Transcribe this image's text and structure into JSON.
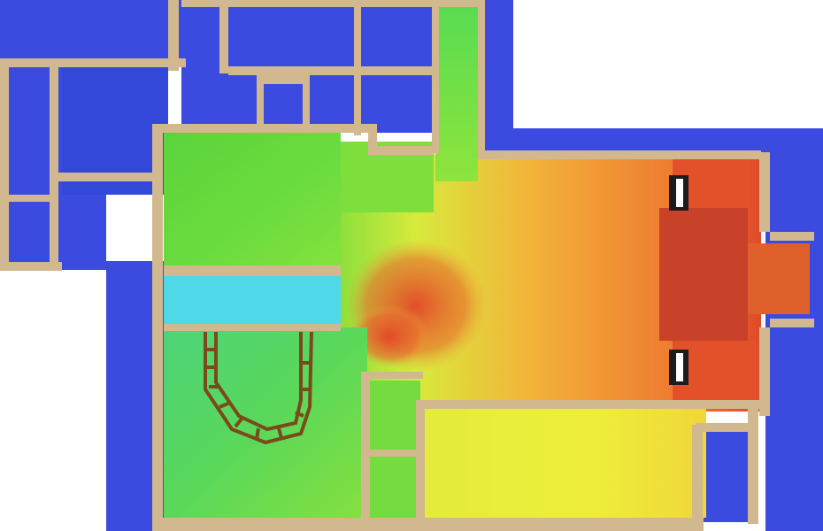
{
  "view": {
    "kind": "top-down 3D floor plan with simulated heat distribution",
    "background_color": "#ffffff"
  },
  "colors": {
    "exterior_wall_blue": "#3b4be0",
    "wall_beige": "#d2b88f",
    "heat_cold_cyan": "#4fd8e8",
    "heat_cool_green": "#62dc3c",
    "heat_mid_yellow": "#e8ee3a",
    "heat_warm_orange": "#f1a13a",
    "heat_hot_red": "#e0482a",
    "dark_shadow": "#1c1c1c"
  },
  "rooms": [
    {
      "id": "west-rooms",
      "temperature": "cold"
    },
    {
      "id": "north-rooms",
      "temperature": "cold"
    },
    {
      "id": "green-zone",
      "temperature": "cool"
    },
    {
      "id": "pool",
      "temperature": "cold"
    },
    {
      "id": "stair-room",
      "temperature": "cool"
    },
    {
      "id": "hall",
      "temperature": "warm"
    },
    {
      "id": "fireplace-zone",
      "temperature": "hot"
    },
    {
      "id": "south-lounge",
      "temperature": "mild"
    },
    {
      "id": "east-rooms",
      "temperature": "cold"
    }
  ]
}
